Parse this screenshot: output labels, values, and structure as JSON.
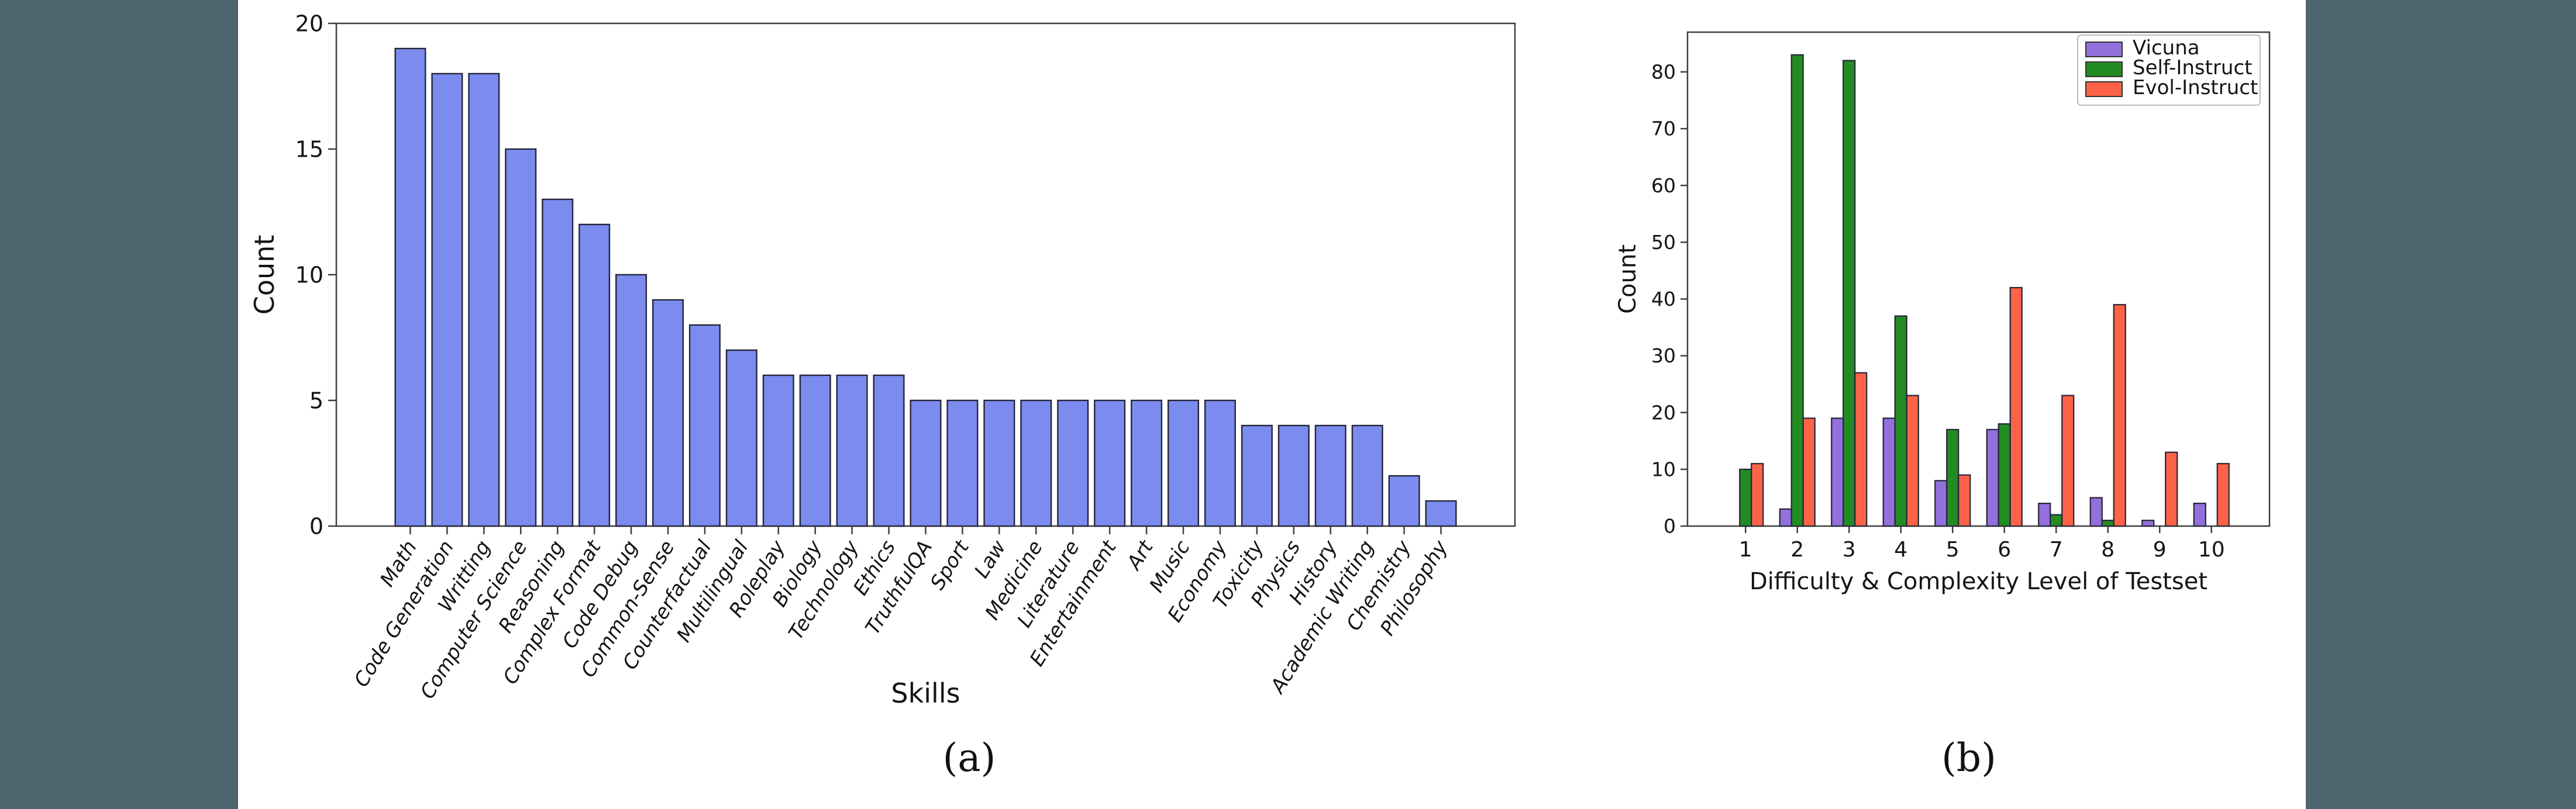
{
  "page": {
    "background": "#4d656e",
    "panel_background": "#ffffff"
  },
  "captions": {
    "a": "(a)",
    "b": "(b)"
  },
  "chart_data": [
    {
      "type": "bar",
      "panel": "a",
      "title": "",
      "xlabel": "Skills",
      "ylabel": "Count",
      "ylim": [
        0,
        20
      ],
      "yticks": [
        0,
        5,
        10,
        15,
        20
      ],
      "grid": false,
      "legend_position": "none",
      "bar_color": "#7b8cee",
      "bar_edge_color": "#25253a",
      "categories": [
        "Math",
        "Code Generation",
        "Writting",
        "Computer Science",
        "Reasoning",
        "Complex Format",
        "Code Debug",
        "Common-Sense",
        "Counterfactual",
        "Multilingual",
        "Roleplay",
        "Biology",
        "Technology",
        "Ethics",
        "TruthfulQA",
        "Sport",
        "Law",
        "Medicine",
        "Literature",
        "Entertainment",
        "Art",
        "Music",
        "Economy",
        "Toxicity",
        "Physics",
        "History",
        "Academic Writing",
        "Chemistry",
        "Philosophy"
      ],
      "values": [
        19,
        18,
        18,
        15,
        13,
        12,
        10,
        9,
        8,
        7,
        6,
        6,
        6,
        6,
        5,
        5,
        5,
        5,
        5,
        5,
        5,
        5,
        5,
        4,
        4,
        4,
        4,
        2,
        1
      ]
    },
    {
      "type": "bar",
      "panel": "b",
      "title": "",
      "xlabel": "Difficulty & Complexity Level of Testset",
      "ylabel": "Count",
      "ylim": [
        0,
        87
      ],
      "yticks": [
        0,
        10,
        20,
        30,
        40,
        50,
        60,
        70,
        80
      ],
      "grid": false,
      "legend_position": "upper right",
      "bar_edge_color": "#25253a",
      "categories": [
        "1",
        "2",
        "3",
        "4",
        "5",
        "6",
        "7",
        "8",
        "9",
        "10"
      ],
      "series": [
        {
          "name": "Vicuna",
          "color": "#9370DB",
          "values": [
            0,
            3,
            19,
            19,
            8,
            17,
            4,
            5,
            1,
            4
          ]
        },
        {
          "name": "Self-Instruct",
          "color": "#228B22",
          "values": [
            10,
            83,
            82,
            37,
            17,
            18,
            2,
            1,
            0,
            0
          ]
        },
        {
          "name": "Evol-Instruct",
          "color": "#FF6347",
          "values": [
            11,
            19,
            27,
            23,
            9,
            42,
            23,
            39,
            13,
            11
          ]
        }
      ]
    }
  ]
}
